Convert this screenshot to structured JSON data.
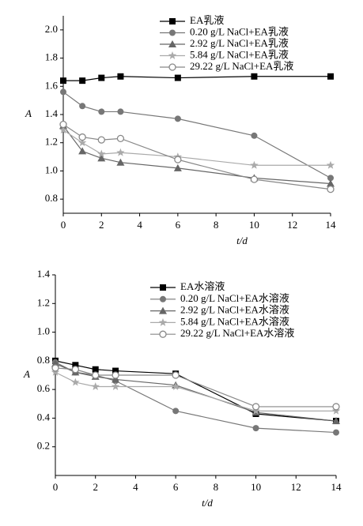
{
  "chart_data": [
    {
      "type": "line",
      "ylabel": "A",
      "xlabel": "t/d",
      "x": [
        0,
        1,
        2,
        3,
        6,
        10,
        14
      ],
      "series": [
        {
          "name": "EA乳液",
          "color": "#000000",
          "marker": "square",
          "values": [
            1.64,
            1.64,
            1.66,
            1.67,
            1.66,
            1.67,
            1.67
          ]
        },
        {
          "name": "0.20 g/L NaCl+EA乳液",
          "color": "#777777",
          "marker": "circle",
          "values": [
            1.56,
            1.46,
            1.42,
            1.42,
            1.37,
            1.25,
            0.95
          ]
        },
        {
          "name": "2.92 g/L NaCl+EA乳液",
          "color": "#666666",
          "marker": "triangle",
          "values": [
            1.32,
            1.14,
            1.09,
            1.06,
            1.02,
            0.95,
            0.91
          ]
        },
        {
          "name": "5.84 g/L NaCl+EA乳液",
          "color": "#aaaaaa",
          "marker": "star",
          "values": [
            1.29,
            1.2,
            1.12,
            1.13,
            1.1,
            1.04,
            1.04
          ]
        },
        {
          "name": "29.22 g/L NaCl+EA乳液",
          "color": "#888888",
          "marker": "open-circle",
          "values": [
            1.33,
            1.24,
            1.22,
            1.23,
            1.08,
            0.94,
            0.87
          ]
        }
      ],
      "xlim": [
        0,
        14
      ],
      "xticks": [
        0,
        2,
        4,
        6,
        8,
        10,
        12,
        14
      ],
      "ylim": [
        0.7,
        2.1
      ],
      "yticks": [
        0.8,
        {
          "value": 1,
          "label": "1.0"
        },
        1.2,
        1.4,
        1.6,
        1.8,
        {
          "value": 2,
          "label": "2.0"
        }
      ]
    },
    {
      "type": "line",
      "ylabel": "A",
      "xlabel": "t/d",
      "x": [
        0,
        1,
        2,
        3,
        6,
        10,
        14
      ],
      "series": [
        {
          "name": "EA水溶液",
          "color": "#000000",
          "marker": "square",
          "values": [
            0.8,
            0.77,
            0.74,
            0.73,
            0.71,
            0.43,
            0.38
          ]
        },
        {
          "name": "0.20 g/L NaCl+EA水溶液",
          "color": "#777777",
          "marker": "circle",
          "values": [
            0.79,
            0.72,
            0.7,
            0.66,
            0.45,
            0.33,
            0.3
          ]
        },
        {
          "name": "2.92 g/L NaCl+EA水溶液",
          "color": "#666666",
          "marker": "triangle",
          "values": [
            0.78,
            0.72,
            0.69,
            0.67,
            0.63,
            0.44,
            0.38
          ]
        },
        {
          "name": "5.84 g/L NaCl+EA水溶液",
          "color": "#aaaaaa",
          "marker": "star",
          "values": [
            0.72,
            0.65,
            0.62,
            0.62,
            0.62,
            0.45,
            0.45
          ]
        },
        {
          "name": "29.22 g/L NaCl+EA水溶液",
          "color": "#888888",
          "marker": "open-circle",
          "values": [
            0.75,
            0.74,
            0.7,
            0.7,
            0.7,
            0.48,
            0.48
          ]
        }
      ],
      "xlim": [
        0,
        14
      ],
      "xticks": [
        0,
        2,
        4,
        6,
        8,
        10,
        12,
        14
      ],
      "ylim": [
        0,
        1.4
      ],
      "yticks": [
        0.2,
        0.4,
        0.6,
        0.8,
        {
          "value": 1,
          "label": "1.0"
        },
        1.2,
        1.4
      ]
    }
  ]
}
